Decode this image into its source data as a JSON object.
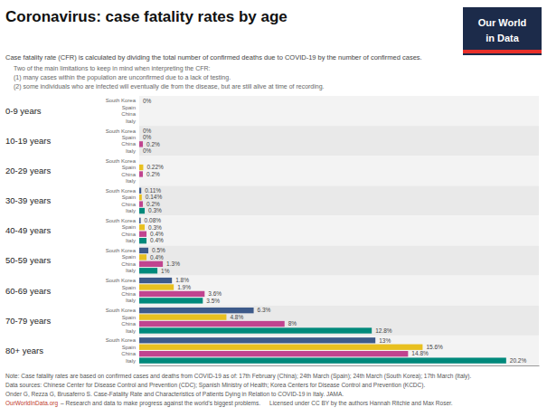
{
  "chart_data": {
    "type": "bar",
    "orientation": "horizontal",
    "title": "Coronavirus: case fatality rates by age",
    "subtitle": [
      "Case fatality rate (CFR) is calculated by dividing the total number of confirmed deaths due to COVID-19 by the number of confirmed cases.",
      "Two of the main limitations to keep in mind when interpreting the CFR:",
      "(1) many cases within the population are unconfirmed due to a lack of testing.",
      "(2) some individuals who are infected will eventually die from the disease, but are still alive at time of recording."
    ],
    "annotations": [
      "Note: Case fatality rates are based on confirmed cases and deaths from COVID-19 as of: 17th February (China); 24th March (Spain); 24th March (South Korea); 17th March (Italy).",
      "Data sources: Chinese Center for Disease Control and Prevention (CDC); Spanish Ministry of Health; Korea Centers for Disease Control and Prevention (KCDC).",
      "Onder G, Rezza G, Brusaferro S. Case-Fatality Rate and Characteristics of Patients Dying in Relation to COVID-19 in Italy. JAMA.",
      "OurWorldInData.org",
      "– Research and data to make progress against the world’s biggest problems.",
      "Licensed under CC BY by the authors Hannah Ritchie and Max Roser.",
      "Our World",
      "in Data"
    ],
    "categories": [
      "0-9 years",
      "10-19 years",
      "20-29 years",
      "30-39 years",
      "40-49 years",
      "50-59 years",
      "60-69 years",
      "70-79 years",
      "80+ years"
    ],
    "series": [
      {
        "name": "South Korea",
        "color": "#3D5A8A",
        "values": [
          0.0,
          0.0,
          0.0,
          0.11,
          0.08,
          0.5,
          1.8,
          6.3,
          13.0
        ],
        "value_labels": [
          "0%",
          "0%",
          null,
          "0.11%",
          "0.08%",
          "0.5%",
          "1.8%",
          "6.3%",
          "13%"
        ]
      },
      {
        "name": "Spain",
        "color": "#E8C020",
        "values": [
          0.0,
          0.0,
          0.22,
          0.14,
          0.3,
          0.4,
          1.9,
          4.8,
          15.6
        ],
        "value_labels": [
          null,
          "0%",
          "0.22%",
          "0.14%",
          "0.3%",
          "0.4%",
          "1.9%",
          "4.8%",
          "15.6%"
        ]
      },
      {
        "name": "China",
        "color": "#C0448F",
        "values": [
          0.0,
          0.2,
          0.2,
          0.2,
          0.4,
          1.3,
          3.6,
          8.0,
          14.8
        ],
        "value_labels": [
          null,
          "0.2%",
          "0.2%",
          "0.2%",
          "0.4%",
          "1.3%",
          "3.6%",
          "8%",
          "14.8%"
        ]
      },
      {
        "name": "Italy",
        "color": "#00897B",
        "values": [
          0.0,
          0.0,
          0.0,
          0.3,
          0.4,
          1.0,
          3.5,
          12.8,
          20.2
        ],
        "value_labels": [
          null,
          "0%",
          null,
          "0.3%",
          "0.4%",
          "1%",
          "3.5%",
          "12.8%",
          "20.2%"
        ]
      }
    ],
    "xlim": [
      0,
      22
    ],
    "tick_labels": false,
    "grid": false,
    "data_labels": true
  }
}
